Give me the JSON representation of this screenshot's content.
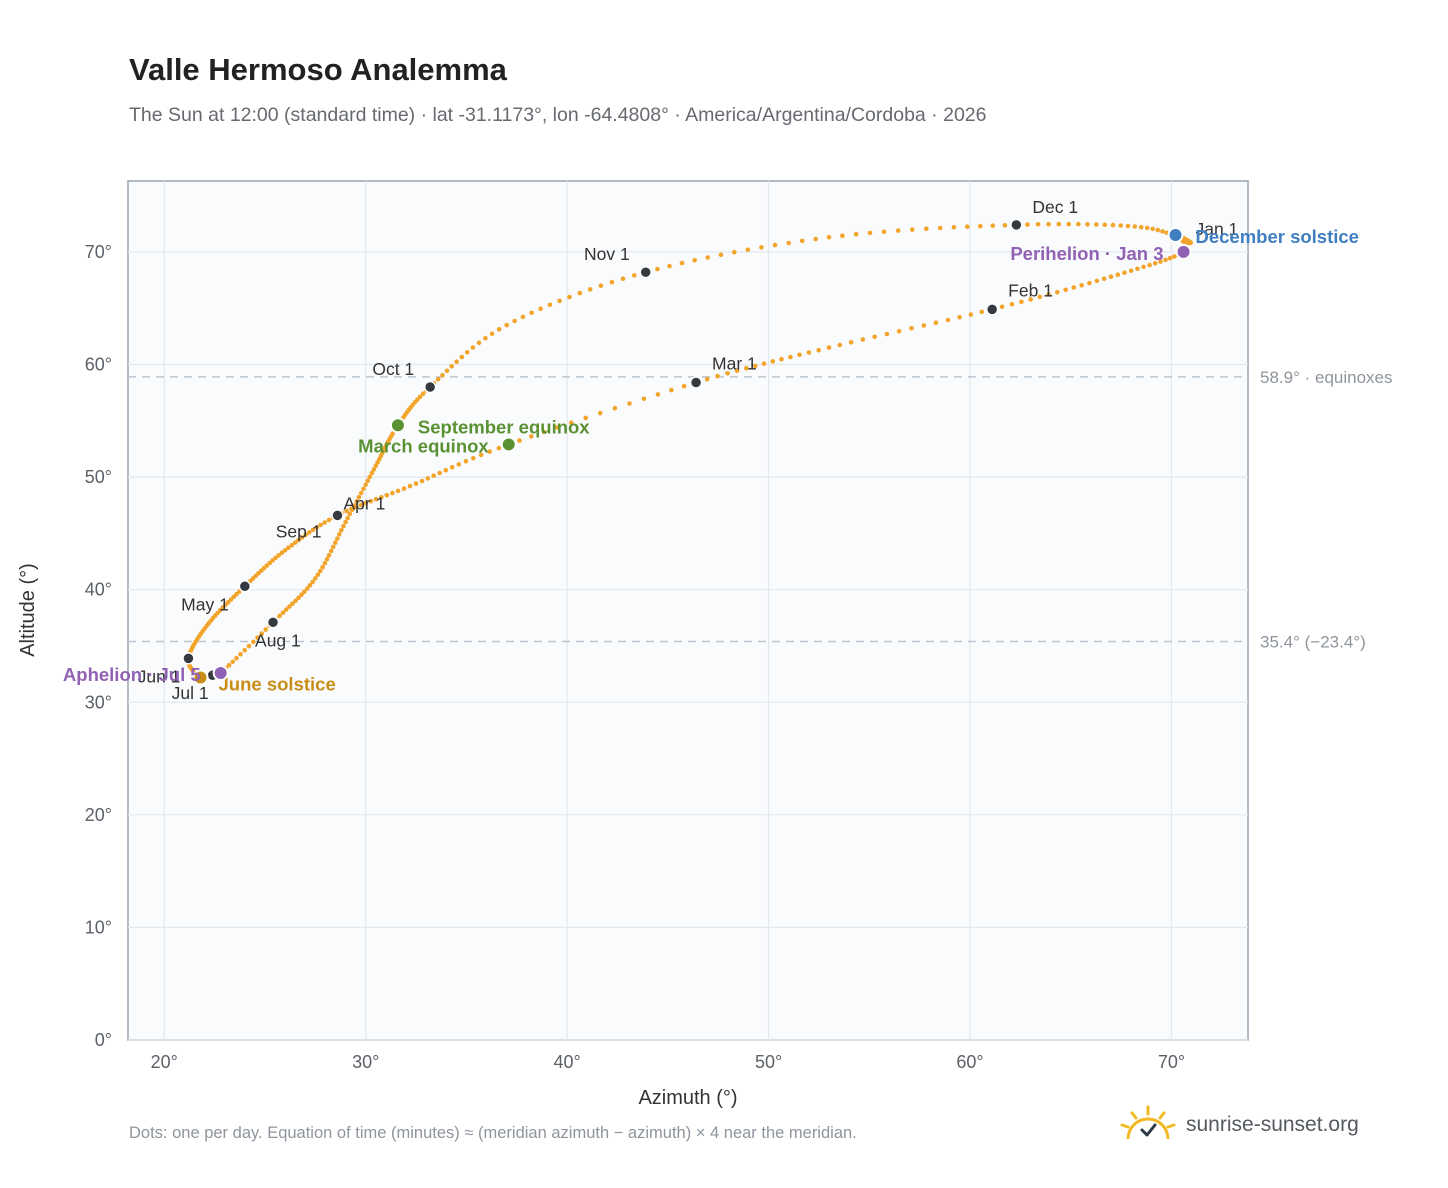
{
  "header": {
    "title": "Valle Hermoso Analemma",
    "subtitle": "The Sun at 12:00 (standard time) · lat -31.1173°, lon -64.4808° · America/Argentina/Cordoba · 2026"
  },
  "footer": {
    "note": "Dots: one per day. Equation of time (minutes) ≈ (meridian azimuth − azimuth) × 4 near the meridian.",
    "brand": "sunrise-sunset.org",
    "brand_icon": "sun-logo-icon"
  },
  "colors": {
    "curve": "#f2a42b",
    "month_marker": "#343a40",
    "equinox": "#5a9233",
    "december_solstice": "#3f7fc0",
    "june_solstice": "#c98d17",
    "apsis": "#9162b3",
    "plot_background": "#f9fbfd",
    "grid": "#e3e8ee",
    "reference_line": "#bcc5d0"
  },
  "chart_data": {
    "type": "scatter",
    "xlabel": "Azimuth (°)",
    "ylabel": "Altitude (°)",
    "xlim": [
      18.2,
      73.8
    ],
    "ylim": [
      0,
      76.3
    ],
    "xticks": [
      20,
      30,
      40,
      50,
      60,
      70
    ],
    "yticks": [
      0,
      10,
      20,
      30,
      40,
      50,
      60,
      70
    ],
    "tick_suffix": "°",
    "grid": true,
    "series": [
      {
        "type": "line",
        "description_points_are_monthly_knots": true,
        "knots": [
          {
            "x": 70.2,
            "y": 71.5
          },
          {
            "x": 70.6,
            "y": 70.0
          },
          {
            "x": 67.0,
            "y": 67.8
          },
          {
            "x": 61.1,
            "y": 64.9
          },
          {
            "x": 53.0,
            "y": 61.5
          },
          {
            "x": 46.4,
            "y": 58.4
          },
          {
            "x": 37.1,
            "y": 52.9
          },
          {
            "x": 32.2,
            "y": 49.2
          },
          {
            "x": 28.6,
            "y": 46.6
          },
          {
            "x": 26.0,
            "y": 43.5
          },
          {
            "x": 24.0,
            "y": 40.3
          },
          {
            "x": 22.2,
            "y": 37.0
          },
          {
            "x": 21.2,
            "y": 33.9
          },
          {
            "x": 21.8,
            "y": 32.2
          },
          {
            "x": 22.4,
            "y": 32.4
          },
          {
            "x": 22.8,
            "y": 32.6
          },
          {
            "x": 25.4,
            "y": 37.1
          },
          {
            "x": 27.5,
            "y": 41.0
          },
          {
            "x": 29.0,
            "y": 46.0
          },
          {
            "x": 30.5,
            "y": 51.0
          },
          {
            "x": 31.6,
            "y": 54.6
          },
          {
            "x": 33.2,
            "y": 58.0
          },
          {
            "x": 37.0,
            "y": 63.5
          },
          {
            "x": 43.9,
            "y": 68.2
          },
          {
            "x": 53.0,
            "y": 71.3
          },
          {
            "x": 62.3,
            "y": 72.4
          },
          {
            "x": 68.5,
            "y": 72.2
          },
          {
            "x": 70.9,
            "y": 70.8
          },
          {
            "x": 70.2,
            "y": 71.5
          }
        ]
      }
    ],
    "months": [
      {
        "label": "Jan 1",
        "x": 70.2,
        "y": 71.5
      },
      {
        "label": "Feb 1",
        "x": 61.1,
        "y": 64.9
      },
      {
        "label": "Mar 1",
        "x": 46.4,
        "y": 58.4
      },
      {
        "label": "Apr 1",
        "x": 28.6,
        "y": 46.6
      },
      {
        "label": "May 1",
        "x": 24.0,
        "y": 40.3
      },
      {
        "label": "Jun 1",
        "x": 21.2,
        "y": 33.9
      },
      {
        "label": "Jul 1",
        "x": 22.4,
        "y": 32.4
      },
      {
        "label": "Aug 1",
        "x": 25.4,
        "y": 37.1
      },
      {
        "label": "Sep 1",
        "x": 28.6,
        "y": 46.6
      },
      {
        "label": "Oct 1",
        "x": 33.2,
        "y": 58.0
      },
      {
        "label": "Nov 1",
        "x": 43.9,
        "y": 68.2
      },
      {
        "label": "Dec 1",
        "x": 62.3,
        "y": 72.4
      }
    ],
    "events": [
      {
        "label": "December solstice",
        "x": 70.2,
        "y": 71.5,
        "color": "#3f7fc0"
      },
      {
        "label": "Perihelion · Jan 3",
        "x": 70.6,
        "y": 70.0,
        "color": "#9162b3"
      },
      {
        "label": "March equinox",
        "x": 37.1,
        "y": 52.9,
        "color": "#5a9233"
      },
      {
        "label": "September equinox",
        "x": 31.6,
        "y": 54.6,
        "color": "#5a9233"
      },
      {
        "label": "June solstice",
        "x": 21.8,
        "y": 32.2,
        "color": "#c98d17"
      },
      {
        "label": "Aphelion · Jul 5",
        "x": 22.8,
        "y": 32.6,
        "color": "#9162b3"
      }
    ],
    "reference_lines": [
      {
        "y": 58.9,
        "label": "58.9° · equinoxes"
      },
      {
        "y": 35.4,
        "label": "35.4° (−23.4°)"
      }
    ]
  }
}
